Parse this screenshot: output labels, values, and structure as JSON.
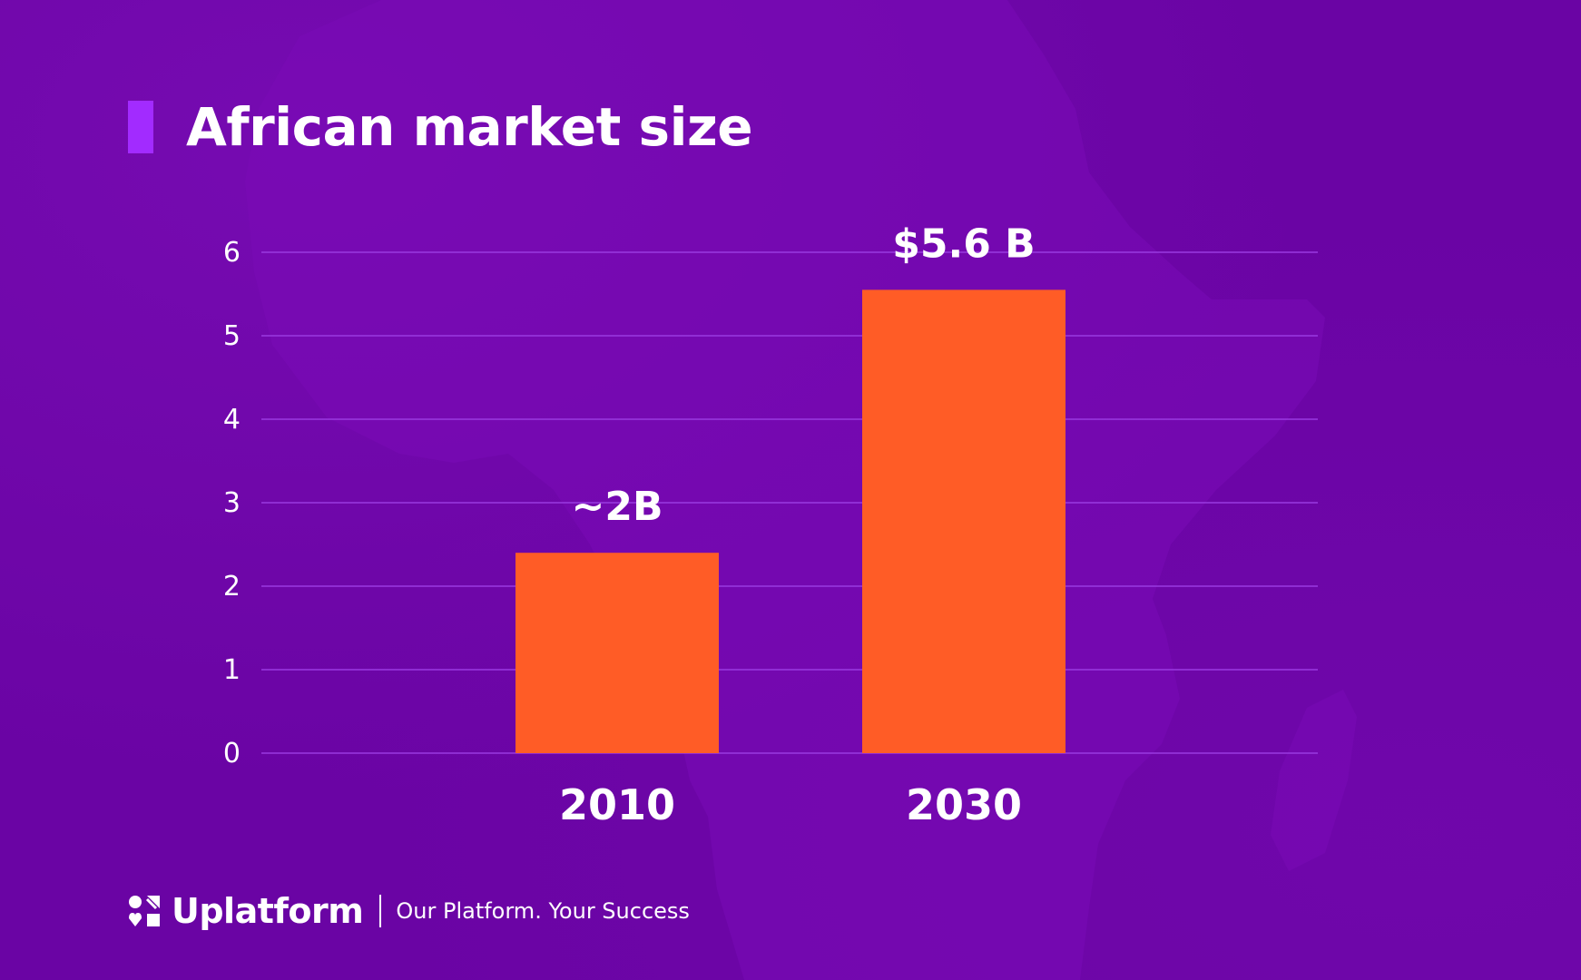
{
  "slide": {
    "title": "African market size",
    "brand": "Uplatform",
    "tagline": "Our Platform. Your Success"
  },
  "colors": {
    "background": "#6a04a4",
    "accent_bar": "#a22bff",
    "bar": "#ff5c26",
    "grid": "#9a3ae0",
    "text": "#ffffff"
  },
  "icons": {
    "logo": "uplatform-logo-icon"
  },
  "chart_data": {
    "type": "bar",
    "title": "African market size",
    "xlabel": "",
    "ylabel": "",
    "categories": [
      "2010",
      "2030"
    ],
    "values": [
      2.4,
      5.55
    ],
    "data_labels": [
      "~2B",
      "$5.6 B"
    ],
    "yticks": [
      "0",
      "1",
      "2",
      "3",
      "4",
      "5",
      "6"
    ],
    "ylim": [
      0,
      6
    ],
    "grid": true,
    "legend": "none"
  }
}
